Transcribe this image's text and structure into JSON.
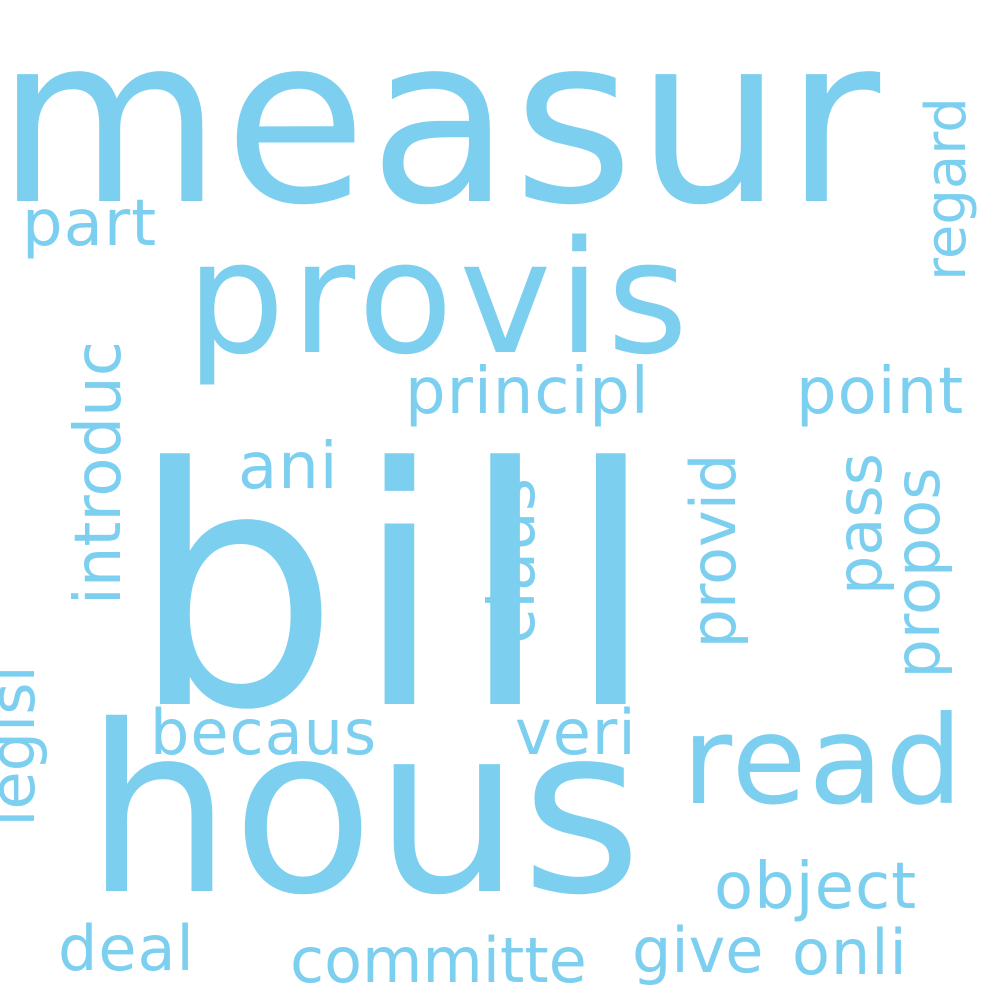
{
  "cloud": {
    "color": "#7dcff0",
    "words": {
      "measur": "measur",
      "provis": "provis",
      "bill": "bill",
      "hous": "hous",
      "read": "read",
      "principl": "principl",
      "point": "point",
      "part": "part",
      "ani": "ani",
      "becaus": "becaus",
      "veri": "veri",
      "object": "object",
      "deal": "deal",
      "committe": "committe",
      "give": "give",
      "onli": "onli",
      "introduc": "introduc",
      "legisl": "legisl",
      "claus": "claus",
      "provid": "provid",
      "pass": "pass",
      "propos": "propos",
      "regard": "regard"
    }
  }
}
